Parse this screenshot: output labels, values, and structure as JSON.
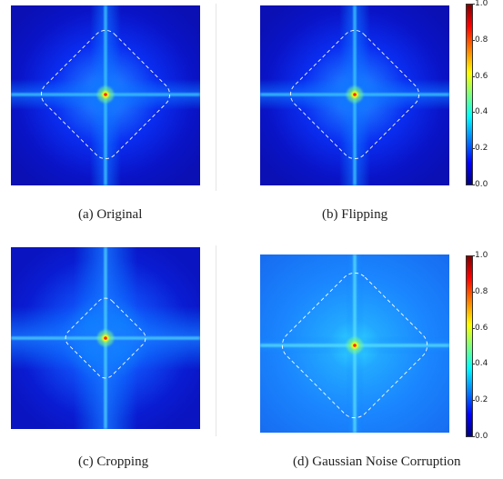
{
  "figure": {
    "panels": [
      {
        "id": "a",
        "caption": "(a)  Original",
        "variant": "dark-arms"
      },
      {
        "id": "b",
        "caption": "(b)  Flipping",
        "variant": "dark-arms"
      },
      {
        "id": "c",
        "caption": "(c)  Cropping",
        "variant": "wide-arms"
      },
      {
        "id": "d",
        "caption": "(d)  Gaussian Noise Corruption",
        "variant": "bright"
      }
    ],
    "colorbar": {
      "ticks": [
        "1.0",
        "0.8",
        "0.6",
        "0.4",
        "0.2",
        "0.0"
      ],
      "colormap": "jet",
      "range": [
        0.0,
        1.0
      ]
    }
  }
}
